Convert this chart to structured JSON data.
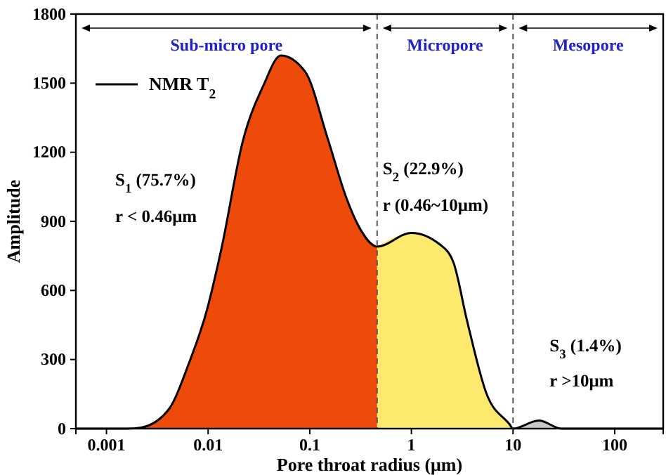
{
  "chart_data": {
    "type": "area",
    "xlabel": "Pore throat radius (μm)",
    "ylabel": "Amplitude",
    "log": "x",
    "xlim": [
      0.0005,
      300
    ],
    "xticks": [
      0.001,
      0.01,
      0.1,
      1,
      10,
      100
    ],
    "ylim": [
      0,
      1800
    ],
    "yticks": [
      0,
      300,
      600,
      900,
      1200,
      1500,
      1800
    ],
    "grid": false,
    "legend": "top left",
    "series": [
      {
        "type": "area",
        "color": "#ee4a0a",
        "x": [
          0.0005,
          0.001,
          0.0016,
          0.0022,
          0.0042,
          0.0063,
          0.0098,
          0.0135,
          0.022,
          0.035,
          0.052,
          0.09,
          0.15,
          0.23,
          0.32,
          0.46
        ],
        "values": [
          0,
          0,
          0,
          5,
          90,
          270,
          520,
          780,
          1250,
          1490,
          1620,
          1550,
          1260,
          1000,
          860,
          790
        ]
      },
      {
        "type": "area",
        "color": "#fde96e",
        "x": [
          0.46,
          1,
          1.9,
          2.6,
          3.5,
          5.5,
          9.2,
          10
        ],
        "values": [
          790,
          850,
          800,
          720,
          475,
          150,
          20,
          0
        ]
      },
      {
        "type": "area",
        "color": "#c8c8c8",
        "x": [
          10,
          18,
          30,
          300
        ],
        "values": [
          0,
          35,
          0,
          0
        ]
      },
      {
        "type": "line",
        "name": "NMR T$_{2}$",
        "color": "#000000",
        "x": [
          0.0005,
          0.001,
          0.0016,
          0.0022,
          0.0042,
          0.0063,
          0.0098,
          0.0135,
          0.022,
          0.035,
          0.052,
          0.09,
          0.15,
          0.23,
          0.32,
          0.46,
          1,
          1.9,
          2.6,
          3.5,
          5.5,
          9.2,
          10,
          18,
          30,
          300
        ],
        "values": [
          0,
          0,
          0,
          5,
          90,
          270,
          520,
          780,
          1250,
          1490,
          1620,
          1550,
          1260,
          1000,
          860,
          790,
          850,
          800,
          720,
          475,
          150,
          20,
          0,
          35,
          0,
          0
        ]
      }
    ],
    "ref_lines": [
      {
        "axis": "x",
        "value": 0.46,
        "color": "#555555",
        "line_style": "dashed"
      },
      {
        "axis": "x",
        "value": 10,
        "color": "#555555",
        "line_style": "dashed"
      }
    ],
    "annotations": [
      "Sub-micro pore",
      "Micropore",
      "Mesopore",
      "S$_{1}$ (75.7%)",
      "r < 0.46μm",
      "S$_{2}$ (22.9%)",
      "r (0.46~10μm)",
      "S$_{3}$ (1.4%)",
      "r >10μm"
    ]
  }
}
